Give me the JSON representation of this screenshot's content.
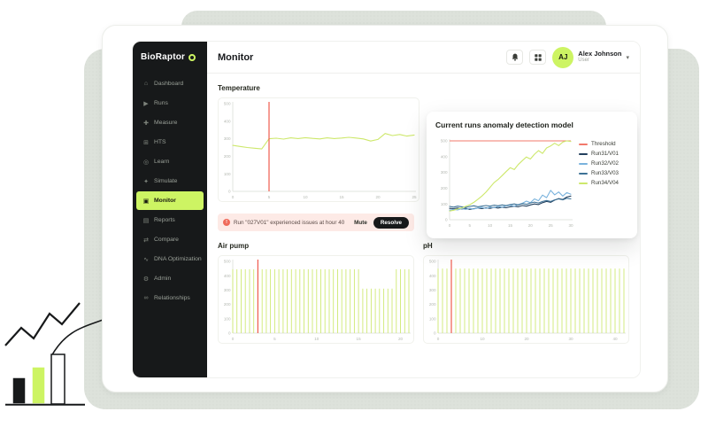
{
  "sidebar": {
    "logo": "BioRaptor",
    "items": [
      {
        "label": "Dashboard",
        "icon": "home-icon",
        "active": false
      },
      {
        "label": "Runs",
        "icon": "play-icon",
        "active": false
      },
      {
        "label": "Measure",
        "icon": "ruler-icon",
        "active": false
      },
      {
        "label": "HTS",
        "icon": "grid-icon",
        "active": false
      },
      {
        "label": "Learn",
        "icon": "pin-icon",
        "active": false
      },
      {
        "label": "Simulate",
        "icon": "flask-icon",
        "active": false
      },
      {
        "label": "Monitor",
        "icon": "monitor-icon",
        "active": true
      },
      {
        "label": "Reports",
        "icon": "report-icon",
        "active": false
      },
      {
        "label": "Compare",
        "icon": "compare-icon",
        "active": false
      },
      {
        "label": "DNA Optimization",
        "icon": "dna-icon",
        "active": false
      },
      {
        "label": "Admin",
        "icon": "gear-icon",
        "active": false
      },
      {
        "label": "Relationships",
        "icon": "network-icon",
        "active": false
      }
    ]
  },
  "header": {
    "title": "Monitor",
    "user": {
      "initials": "AJ",
      "name": "Alex Johnson",
      "role": "User"
    }
  },
  "alert": {
    "message": "Run \"027V01\" experienced issues at hour 40",
    "icon": "warning-icon",
    "mute_label": "Mute",
    "resolve_label": "Resolve"
  },
  "colors": {
    "accent_lime": "#cdf463",
    "sidebar_bg": "#17191a",
    "threshold_red": "#ef5b4e",
    "alert_bg": "#fdeae6",
    "chart_green": "#cfe973"
  },
  "chart_data": [
    {
      "id": "temperature",
      "type": "line",
      "title": "Temperature",
      "xlim": [
        0,
        25
      ],
      "ylim": [
        0,
        500
      ],
      "xticks": [
        0,
        5,
        10,
        15,
        20,
        25
      ],
      "yticks": [
        0,
        100,
        200,
        300,
        400,
        500
      ],
      "marker_x": 5,
      "marker_color": "#ef5b4e",
      "grid": false,
      "legend_position": "none",
      "series": [
        {
          "name": "Temperature",
          "color": "#cde86b",
          "values": [
            262,
            256,
            250,
            246,
            242,
            300,
            303,
            298,
            305,
            301,
            306,
            302,
            299,
            305,
            301,
            304,
            308,
            304,
            299,
            287,
            296,
            330,
            318,
            324,
            315,
            321
          ]
        }
      ]
    },
    {
      "id": "anomaly",
      "type": "line",
      "title": "Current runs anomaly detection model",
      "xlim": [
        0,
        30
      ],
      "ylim": [
        0,
        500
      ],
      "xticks": [
        0,
        5,
        10,
        15,
        20,
        25,
        30
      ],
      "yticks": [
        0,
        100,
        200,
        300,
        400,
        500
      ],
      "grid": false,
      "legend_position": "right",
      "series": [
        {
          "name": "Threshold",
          "color": "#f2796b",
          "hline": 500
        },
        {
          "name": "Run31/V01",
          "color": "#23405e",
          "values": [
            72,
            70,
            74,
            68,
            72,
            66,
            70,
            74,
            70,
            76,
            72,
            78,
            74,
            80,
            76,
            82,
            86,
            82,
            90,
            86,
            94,
            100,
            96,
            108,
            116,
            110,
            124,
            134,
            128,
            144,
            150
          ]
        },
        {
          "name": "Run32/V02",
          "color": "#7ab3dd",
          "values": [
            60,
            66,
            62,
            70,
            66,
            72,
            68,
            74,
            78,
            72,
            80,
            76,
            84,
            80,
            88,
            92,
            86,
            96,
            104,
            118,
            108,
            132,
            120,
            156,
            140,
            186,
            158,
            176,
            150,
            172,
            162
          ]
        },
        {
          "name": "Run33/V03",
          "color": "#3e7296",
          "values": [
            84,
            80,
            86,
            82,
            78,
            84,
            88,
            82,
            86,
            90,
            86,
            92,
            88,
            94,
            90,
            96,
            100,
            94,
            102,
            98,
            106,
            112,
            106,
            116,
            122,
            116,
            126,
            132,
            126,
            136,
            132
          ]
        },
        {
          "name": "Run34/V04",
          "color": "#cde86b",
          "values": [
            55,
            60,
            68,
            75,
            85,
            95,
            110,
            130,
            150,
            175,
            205,
            235,
            255,
            280,
            305,
            330,
            318,
            350,
            375,
            398,
            385,
            415,
            438,
            420,
            455,
            468,
            485,
            470,
            492,
            500,
            496
          ]
        }
      ]
    },
    {
      "id": "airpump",
      "type": "comb",
      "title": "Air pump",
      "xlim": [
        0,
        21
      ],
      "ylim": [
        0,
        500
      ],
      "xticks": [
        0,
        5,
        10,
        15,
        20
      ],
      "yticks": [
        0,
        100,
        200,
        300,
        400,
        500
      ],
      "step": 0.5,
      "color": "#cfe973",
      "segments": [
        {
          "from": 0,
          "to": 15,
          "high": 445
        },
        {
          "from": 15.5,
          "to": 19,
          "high": 310
        },
        {
          "from": 19.5,
          "to": 21,
          "high": 445
        }
      ],
      "marker_x": 3,
      "marker_color": "#ef5b4e",
      "grid": false,
      "legend_position": "none"
    },
    {
      "id": "ph",
      "type": "comb",
      "title": "pH",
      "xlim": [
        0,
        42
      ],
      "ylim": [
        0,
        500
      ],
      "xticks": [
        0,
        10,
        20,
        30,
        40
      ],
      "yticks": [
        0,
        100,
        200,
        300,
        400,
        500
      ],
      "step": 1,
      "color": "#cfe973",
      "segments": [
        {
          "from": 0,
          "to": 42,
          "high": 450
        }
      ],
      "marker_x": 3,
      "marker_color": "#ef5b4e",
      "grid": false,
      "legend_position": "none"
    }
  ]
}
